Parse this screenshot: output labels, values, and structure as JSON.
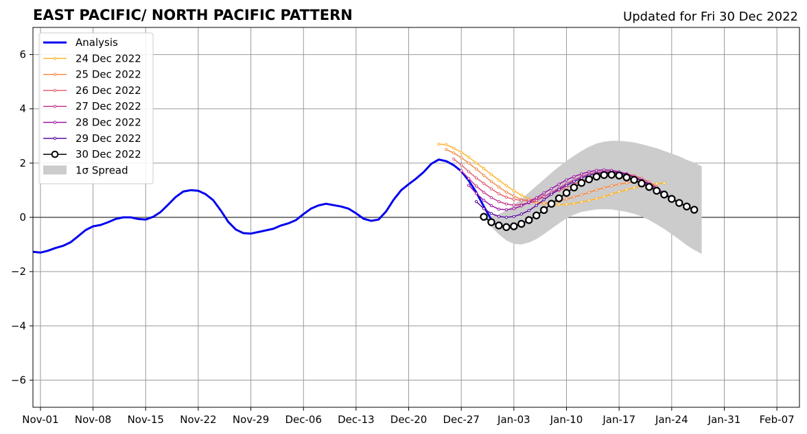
{
  "chart_data": {
    "type": "line",
    "title": "EAST PACIFIC/ NORTH PACIFIC PATTERN",
    "subtitle": "Updated for Fri 30 Dec 2022",
    "xlabel": "",
    "ylabel": "",
    "x_range": [
      "2022-10-31",
      "2023-02-10"
    ],
    "ylim": [
      -7,
      7
    ],
    "yticks": [
      -6,
      -4,
      -2,
      0,
      2,
      4,
      6
    ],
    "ytick_labels": [
      "−6",
      "−4",
      "−2",
      "0",
      "2",
      "4",
      "6"
    ],
    "xticks": [
      {
        "date": "2022-11-01",
        "label": "Nov-01"
      },
      {
        "date": "2022-11-08",
        "label": "Nov-08"
      },
      {
        "date": "2022-11-15",
        "label": "Nov-15"
      },
      {
        "date": "2022-11-22",
        "label": "Nov-22"
      },
      {
        "date": "2022-11-29",
        "label": "Nov-29"
      },
      {
        "date": "2022-12-06",
        "label": "Dec-06"
      },
      {
        "date": "2022-12-13",
        "label": "Dec-13"
      },
      {
        "date": "2022-12-20",
        "label": "Dec-20"
      },
      {
        "date": "2022-12-27",
        "label": "Dec-27"
      },
      {
        "date": "2023-01-03",
        "label": "Jan-03"
      },
      {
        "date": "2023-01-10",
        "label": "Jan-10"
      },
      {
        "date": "2023-01-17",
        "label": "Jan-17"
      },
      {
        "date": "2023-01-24",
        "label": "Jan-24"
      },
      {
        "date": "2023-01-31",
        "label": "Jan-31"
      },
      {
        "date": "2023-02-07",
        "label": "Feb-07"
      }
    ],
    "grid": true,
    "legend_position": "upper-left",
    "series": [
      {
        "name": "Analysis",
        "color": "#0000ee",
        "marker": false,
        "start": "2022-10-31",
        "values": [
          -1.27,
          -1.3,
          -1.23,
          -1.13,
          -1.05,
          -0.92,
          -0.7,
          -0.47,
          -0.33,
          -0.28,
          -0.18,
          -0.06,
          0.0,
          0.0,
          -0.06,
          -0.08,
          0.02,
          0.2,
          0.47,
          0.75,
          0.95,
          1.0,
          0.98,
          0.85,
          0.63,
          0.25,
          -0.17,
          -0.45,
          -0.58,
          -0.6,
          -0.54,
          -0.48,
          -0.42,
          -0.3,
          -0.22,
          -0.1,
          0.12,
          0.32,
          0.44,
          0.5,
          0.45,
          0.4,
          0.32,
          0.15,
          -0.05,
          -0.13,
          -0.08,
          0.22,
          0.65,
          1.0,
          1.22,
          1.43,
          1.67,
          1.97,
          2.13,
          2.07,
          1.92,
          1.7,
          1.35,
          0.92,
          0.4,
          -0.08
        ]
      },
      {
        "name": "24 Dec 2022",
        "color": "#ffb42a",
        "marker": "small",
        "start": "2022-12-24",
        "values": [
          2.7,
          2.68,
          2.55,
          2.4,
          2.22,
          2.0,
          1.8,
          1.58,
          1.37,
          1.17,
          0.98,
          0.82,
          0.68,
          0.58,
          0.52,
          0.48,
          0.47,
          0.48,
          0.51,
          0.56,
          0.62,
          0.69,
          0.77,
          0.86,
          0.94,
          1.02,
          1.09,
          1.15,
          1.2,
          1.24,
          1.26
        ]
      },
      {
        "name": "25 Dec 2022",
        "color": "#f48a48",
        "marker": "small",
        "start": "2022-12-25",
        "values": [
          2.5,
          2.37,
          2.2,
          2.0,
          1.78,
          1.55,
          1.32,
          1.12,
          0.93,
          0.78,
          0.66,
          0.58,
          0.53,
          0.52,
          0.55,
          0.6,
          0.67,
          0.75,
          0.83,
          0.92,
          1.01,
          1.09,
          1.16,
          1.22,
          1.27,
          1.3,
          1.31
        ]
      },
      {
        "name": "26 Dec 2022",
        "color": "#e06070",
        "marker": "small",
        "start": "2022-12-26",
        "values": [
          2.15,
          1.93,
          1.68,
          1.45,
          1.25,
          1.05,
          0.87,
          0.74,
          0.66,
          0.63,
          0.64,
          0.7,
          0.78,
          0.88,
          0.99,
          1.1,
          1.22,
          1.34,
          1.45,
          1.55,
          1.62,
          1.66,
          1.66,
          1.61,
          1.54,
          1.44,
          1.3,
          1.13
        ]
      },
      {
        "name": "27 Dec 2022",
        "color": "#c2378e",
        "marker": "small",
        "start": "2022-12-27",
        "values": [
          1.72,
          1.43,
          1.15,
          0.92,
          0.73,
          0.58,
          0.49,
          0.45,
          0.47,
          0.53,
          0.62,
          0.76,
          0.92,
          1.08,
          1.24,
          1.38,
          1.5,
          1.6,
          1.66,
          1.69,
          1.68,
          1.65,
          1.58,
          1.49,
          1.38,
          1.24,
          1.08
        ]
      },
      {
        "name": "28 Dec 2022",
        "color": "#9914a0",
        "marker": "small",
        "start": "2022-12-28",
        "values": [
          1.18,
          0.88,
          0.63,
          0.43,
          0.3,
          0.28,
          0.32,
          0.42,
          0.56,
          0.72,
          0.9,
          1.06,
          1.22,
          1.38,
          1.5,
          1.6,
          1.68,
          1.73,
          1.75,
          1.73,
          1.68,
          1.6,
          1.48,
          1.34,
          1.17,
          0.98,
          0.78
        ]
      },
      {
        "name": "29 Dec 2022",
        "color": "#5a0aa0",
        "marker": "small",
        "start": "2022-12-29",
        "values": [
          0.58,
          0.32,
          0.14,
          0.03,
          0.0,
          0.03,
          0.12,
          0.25,
          0.44,
          0.65,
          0.85,
          1.03,
          1.18,
          1.32,
          1.45,
          1.55,
          1.61,
          1.65,
          1.66,
          1.63,
          1.57,
          1.48,
          1.36,
          1.22,
          1.06,
          0.9,
          0.72,
          0.53
        ]
      },
      {
        "name": "30 Dec 2022",
        "color": "#000000",
        "marker": "large",
        "start": "2022-12-30",
        "values": [
          0.02,
          -0.18,
          -0.3,
          -0.36,
          -0.33,
          -0.24,
          -0.1,
          0.07,
          0.27,
          0.5,
          0.7,
          0.9,
          1.1,
          1.27,
          1.4,
          1.5,
          1.56,
          1.57,
          1.54,
          1.47,
          1.38,
          1.25,
          1.12,
          0.98,
          0.84,
          0.68,
          0.53,
          0.4,
          0.28
        ]
      }
    ],
    "spread": {
      "name": "1σ Spread",
      "color": "#cccccc",
      "start": "2022-12-30",
      "upper": [
        0.05,
        0.04,
        0.12,
        0.26,
        0.45,
        0.68,
        0.92,
        1.16,
        1.4,
        1.64,
        1.87,
        2.08,
        2.27,
        2.45,
        2.6,
        2.72,
        2.79,
        2.82,
        2.82,
        2.8,
        2.76,
        2.7,
        2.62,
        2.55,
        2.45,
        2.35,
        2.25,
        2.12,
        2.02,
        1.88
      ],
      "lower": [
        -0.02,
        -0.35,
        -0.63,
        -0.85,
        -0.98,
        -1.0,
        -0.93,
        -0.8,
        -0.62,
        -0.42,
        -0.22,
        -0.04,
        0.1,
        0.2,
        0.25,
        0.29,
        0.3,
        0.29,
        0.25,
        0.2,
        0.13,
        0.03,
        -0.1,
        -0.26,
        -0.43,
        -0.62,
        -0.82,
        -1.03,
        -1.2,
        -1.35
      ]
    }
  }
}
